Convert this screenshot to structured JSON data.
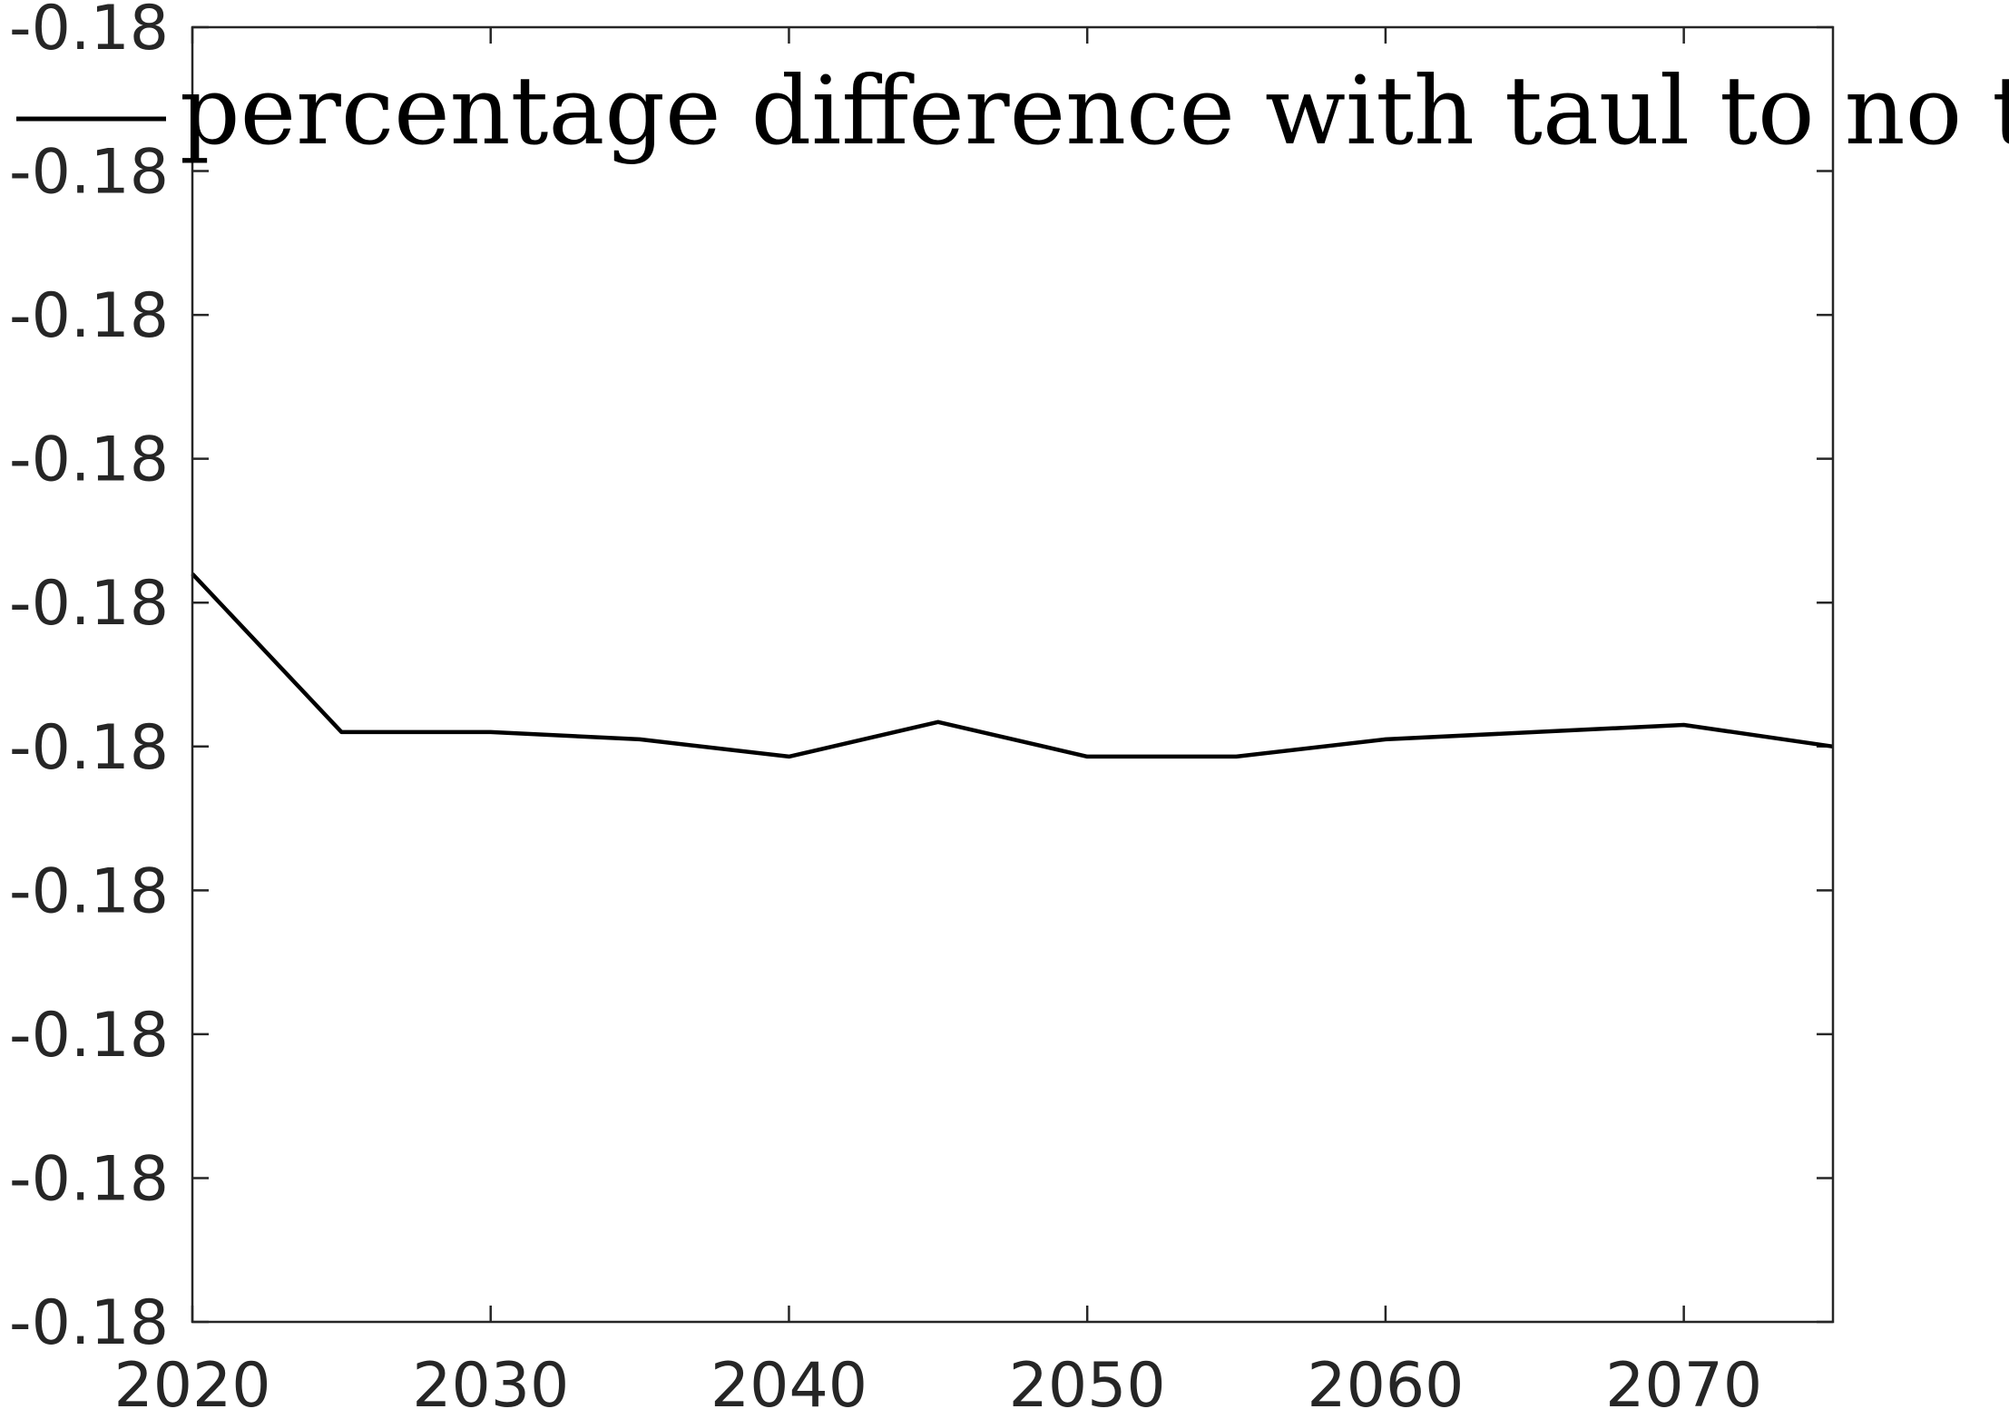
{
  "chart_data": {
    "type": "line",
    "title": "",
    "xlabel": "",
    "ylabel": "",
    "xlim": [
      2020,
      2075
    ],
    "ylim": [
      -0.18045,
      -0.17955
    ],
    "x_ticks": [
      2020,
      2030,
      2040,
      2050,
      2060,
      2070
    ],
    "x_tick_labels": [
      "2020",
      "2030",
      "2040",
      "2050",
      "2060",
      "2070"
    ],
    "y_ticks": [
      -0.18045,
      -0.18035,
      -0.18025,
      -0.18015,
      -0.18005,
      -0.17995,
      -0.17985,
      -0.17975,
      -0.17965,
      -0.17955
    ],
    "y_tick_labels": [
      "-0.18",
      "-0.18",
      "-0.18",
      "-0.18",
      "-0.18",
      "-0.18",
      "-0.18",
      "-0.18",
      "-0.18",
      "-0.18"
    ],
    "grid": false,
    "legend": "top",
    "series": [
      {
        "name": "percentage difference with taul to no taul",
        "color": "#000000",
        "x": [
          2020,
          2025,
          2030,
          2035,
          2040,
          2045,
          2050,
          2055,
          2060,
          2065,
          2070,
          2075
        ],
        "y": [
          -0.17993,
          -0.18004,
          -0.18004,
          -0.180045,
          -0.180057,
          -0.180033,
          -0.180057,
          -0.180057,
          -0.180045,
          -0.18004,
          -0.180035,
          -0.18005
        ]
      }
    ]
  }
}
